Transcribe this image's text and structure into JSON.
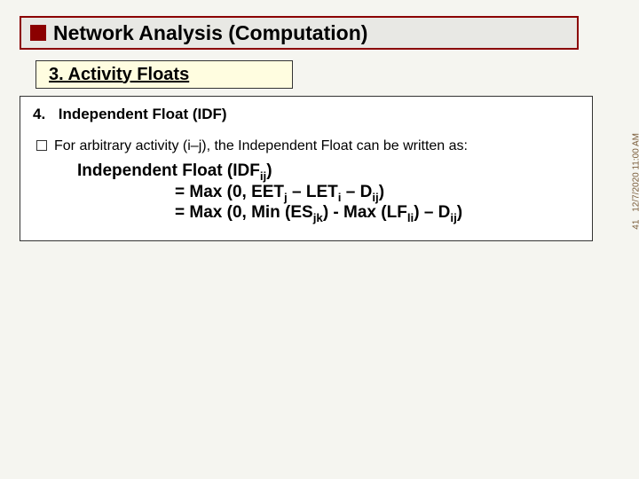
{
  "title": "Network Analysis (Computation)",
  "subtitle": "3.  Activity Floats",
  "item4": {
    "num": "4.",
    "label": "Independent Float (IDF)"
  },
  "bullet": "For arbitrary activity (i–j), the Independent Float can be written as:",
  "formula": {
    "line1_a": "Independent Float (IDF",
    "line1_sub": "ij",
    "line1_b": ")",
    "line2_a": "= Max (0, EET",
    "line2_sub1": "j",
    "line2_b": " – LET",
    "line2_sub2": "i",
    "line2_c": " – D",
    "line2_sub3": "ij",
    "line2_d": ")",
    "line3_a": "= Max (0, Min (ES",
    "line3_sub1": "jk",
    "line3_b": ") - Max (LF",
    "line3_sub2": "li",
    "line3_c": ") – D",
    "line3_sub3": "ij",
    "line3_d": ")"
  },
  "side": {
    "page": "41",
    "timestamp": "12/7/2020 11:00 AM"
  },
  "colors": {
    "title_border": "#8b0000",
    "subtitle_bg": "#fffde0",
    "page_bg": "#f5f5f0"
  }
}
